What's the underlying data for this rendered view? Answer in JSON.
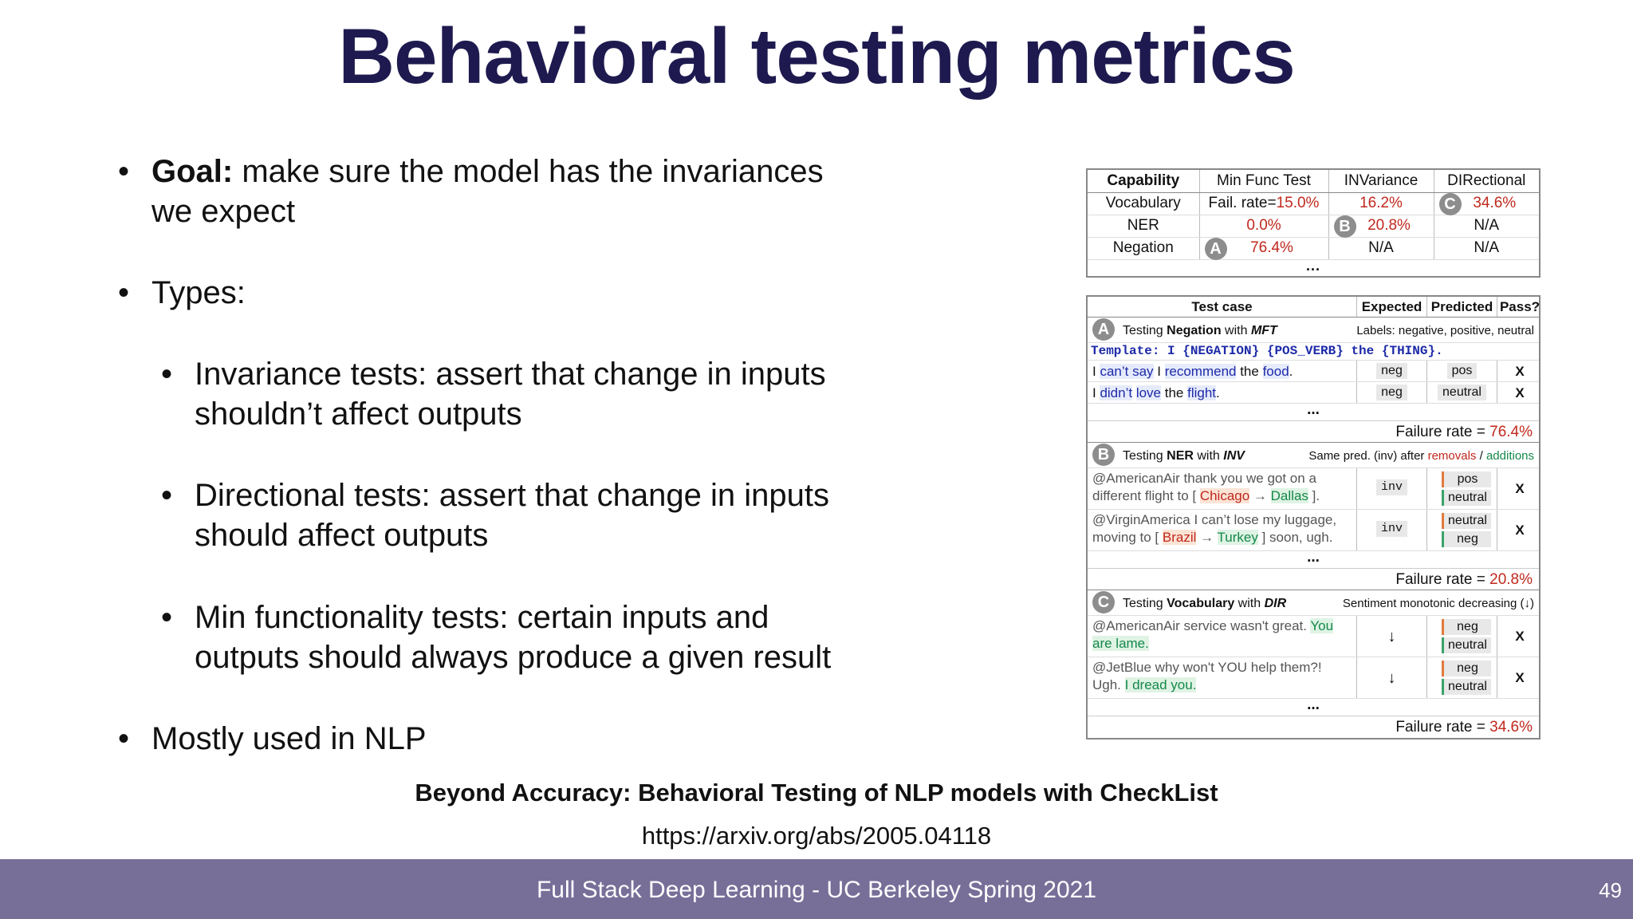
{
  "title": "Behavioral testing metrics",
  "bullets": {
    "goal_bold": "Goal:",
    "goal_rest": "make sure the model has the invariances",
    "goal_cont": "we expect",
    "types": "Types:",
    "inv_1": "Invariance tests: assert that change in inputs",
    "inv_2": "shouldn’t affect outputs",
    "dir_1": "Directional tests: assert that change in inputs",
    "dir_2": "should affect outputs",
    "mft_1": "Min functionality tests: certain inputs and",
    "mft_2": "outputs should always produce a given result",
    "nlp": "Mostly used in NLP",
    "bullet_glyph": "•"
  },
  "reference": {
    "title": "Beyond Accuracy: Behavioral Testing of NLP models with CheckList",
    "link": "https://arxiv.org/abs/2005.04118"
  },
  "footer": {
    "text": "Full Stack Deep Learning - UC Berkeley Spring 2021",
    "page": "49"
  },
  "summary_table": {
    "headers": [
      "Capability",
      "Min Func Test",
      "INVariance",
      "DIRectional"
    ],
    "rows": [
      {
        "cap": "Vocabulary",
        "mft_prefix": "Fail. rate=",
        "mft": "15.0%",
        "inv": "16.2%",
        "dir": "34.6%",
        "dir_badge": "C"
      },
      {
        "cap": "NER",
        "mft": "0.0%",
        "inv": "20.8%",
        "inv_badge": "B",
        "dir": "N/A"
      },
      {
        "cap": "Negation",
        "mft": "76.4%",
        "mft_badge": "A",
        "inv": "N/A",
        "dir": "N/A"
      }
    ],
    "ellipsis": "..."
  },
  "detail_table": {
    "headers": [
      "Test case",
      "Expected",
      "Predicted",
      "Pass?"
    ],
    "section_a": {
      "badge": "A",
      "label_pre": "Testing ",
      "label_bold": "Negation",
      "label_mid": " with ",
      "label_it": "MFT",
      "labels": "Labels: negative, positive, neutral",
      "template": "Template: I {NEGATION} {POS_VERB} the {THING}.",
      "cases": [
        {
          "text_1": "I ",
          "neg": "can’t say",
          "sp": " I ",
          "verb": "recommend",
          "the": " the ",
          "thing": "food",
          "end": ".",
          "expected": "neg",
          "predicted": "pos",
          "pass": "X"
        },
        {
          "text_1": "I ",
          "neg": "didn’t",
          "sp": " ",
          "verb": "love",
          "the": " the ",
          "thing": "flight",
          "end": ".",
          "expected": "neg",
          "predicted": "neutral",
          "pass": "X"
        }
      ],
      "failure_prefix": "Failure rate = ",
      "failure": "76.4%"
    },
    "section_b": {
      "badge": "B",
      "label_pre": "Testing ",
      "label_bold": "NER",
      "label_mid": " with ",
      "label_it": "INV",
      "same_pred": "Same pred. (inv) after",
      "removals": "removals",
      "slash": " / ",
      "additions": "additions",
      "cases": [
        {
          "line1": "@AmericanAir thank you we got on a",
          "line2_pre": "different flight to [ ",
          "from": "Chicago",
          "arrow": " → ",
          "to": "Dallas",
          "line2_post": " ].",
          "expected": "inv",
          "pred_a": "pos",
          "pred_b": "neutral",
          "pass": "X"
        },
        {
          "line1": "@VirginAmerica I can’t lose my luggage,",
          "line2_pre": "moving to [ ",
          "from": "Brazil",
          "arrow": " → ",
          "to": "Turkey",
          "line2_post": " ] soon, ugh.",
          "expected": "inv",
          "pred_a": "neutral",
          "pred_b": "neg",
          "pass": "X"
        }
      ],
      "failure_prefix": "Failure rate = ",
      "failure": "20.8%"
    },
    "section_c": {
      "badge": "C",
      "label_pre": "Testing ",
      "label_bold": "Vocabulary",
      "label_mid": " with ",
      "label_it": "DIR",
      "right": "Sentiment monotonic decreasing (↓)",
      "cases": [
        {
          "line1_pre": "@AmericanAir service wasn't great. ",
          "line1_add": "You",
          "line2_add": "are lame.",
          "expected": "↓",
          "pred_a": "neg",
          "pred_b": "neutral",
          "pass": "X"
        },
        {
          "line1_pre": "@JetBlue why won't YOU help them?!",
          "line1_add": "",
          "line2_pre": "Ugh. ",
          "line2_add": "I dread you.",
          "expected": "↓",
          "pred_a": "neg",
          "pred_b": "neutral",
          "pass": "X"
        }
      ],
      "failure_prefix": "Failure rate = ",
      "failure": "34.6%"
    },
    "ellipsis": "..."
  }
}
